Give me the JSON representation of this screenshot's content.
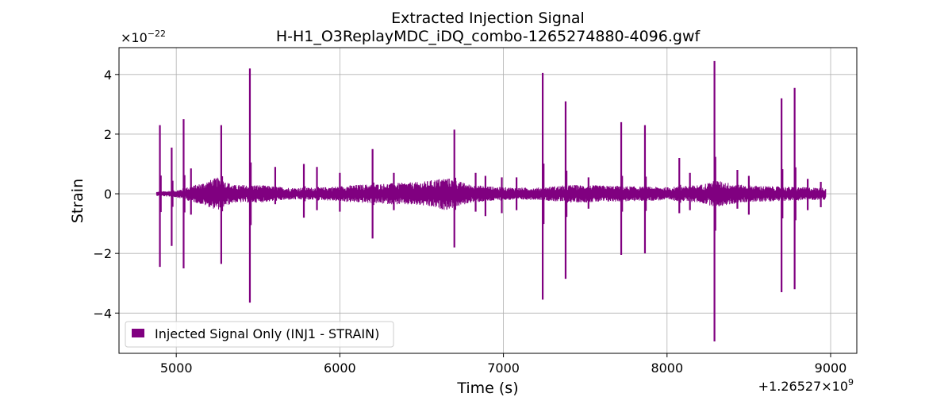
{
  "chart_data": {
    "type": "line",
    "title": "Extracted Injection Signal",
    "subtitle": "H-H1_O3ReplayMDC_iDQ_combo-1265274880-4096.gwf",
    "xlabel": "Time (s)",
    "ylabel": "Strain",
    "x_offset_label": "+1.26527×10",
    "x_offset_exponent": "9",
    "y_scale_label": "×10",
    "y_scale_exponent": "−22",
    "x_ticks": [
      5000,
      6000,
      7000,
      8000,
      9000
    ],
    "x_tick_labels": [
      "5000",
      "6000",
      "7000",
      "8000",
      "9000"
    ],
    "y_ticks": [
      4,
      2,
      0,
      -2,
      -4
    ],
    "y_tick_labels": [
      "4",
      "2",
      "0",
      "−2",
      "−4"
    ],
    "xlim": [
      4650,
      9160
    ],
    "ylim": [
      -5.35,
      4.9
    ],
    "grid": true,
    "legend_position": "lower-left",
    "series": [
      {
        "name": "Injected Signal Only (INJ1 - STRAIN)",
        "color": "#800080",
        "x_range": [
          4880,
          8970
        ],
        "baseline_noise": [
          [
            4880,
            0.07
          ],
          [
            5000,
            0.12
          ],
          [
            5150,
            0.35
          ],
          [
            5250,
            0.55
          ],
          [
            5350,
            0.3
          ],
          [
            5500,
            0.3
          ],
          [
            5700,
            0.2
          ],
          [
            5900,
            0.22
          ],
          [
            6100,
            0.3
          ],
          [
            6300,
            0.35
          ],
          [
            6500,
            0.4
          ],
          [
            6650,
            0.55
          ],
          [
            6800,
            0.3
          ],
          [
            7000,
            0.22
          ],
          [
            7200,
            0.2
          ],
          [
            7400,
            0.3
          ],
          [
            7600,
            0.28
          ],
          [
            7800,
            0.25
          ],
          [
            8000,
            0.22
          ],
          [
            8200,
            0.3
          ],
          [
            8300,
            0.45
          ],
          [
            8450,
            0.3
          ],
          [
            8650,
            0.25
          ],
          [
            8970,
            0.2
          ]
        ],
        "spikes": [
          [
            4900,
            2.3,
            -2.45
          ],
          [
            4972,
            1.55,
            -1.75
          ],
          [
            5045,
            2.5,
            -2.5
          ],
          [
            5090,
            0.85,
            -0.7
          ],
          [
            5275,
            2.3,
            -2.35
          ],
          [
            5450,
            4.2,
            -3.65
          ],
          [
            5605,
            0.9,
            -0.35
          ],
          [
            5780,
            1.0,
            -0.8
          ],
          [
            5860,
            0.9,
            -0.55
          ],
          [
            6000,
            0.7,
            -0.6
          ],
          [
            6200,
            1.5,
            -1.5
          ],
          [
            6330,
            0.7,
            -0.55
          ],
          [
            6700,
            2.15,
            -1.8
          ],
          [
            6830,
            0.7,
            -0.6
          ],
          [
            6890,
            0.6,
            -0.75
          ],
          [
            6990,
            0.55,
            -0.65
          ],
          [
            7080,
            0.55,
            -0.55
          ],
          [
            7240,
            4.05,
            -3.55
          ],
          [
            7380,
            3.1,
            -2.85
          ],
          [
            7520,
            0.55,
            -0.5
          ],
          [
            7720,
            2.4,
            -2.05
          ],
          [
            7865,
            2.3,
            -2.0
          ],
          [
            8075,
            1.2,
            -0.65
          ],
          [
            8140,
            0.7,
            -0.55
          ],
          [
            8290,
            4.45,
            -4.95
          ],
          [
            8430,
            0.8,
            -0.5
          ],
          [
            8500,
            0.6,
            -0.7
          ],
          [
            8700,
            3.2,
            -3.3
          ],
          [
            8780,
            3.55,
            -3.2
          ],
          [
            8860,
            0.5,
            -0.55
          ],
          [
            8940,
            0.4,
            -0.45
          ]
        ]
      }
    ]
  }
}
